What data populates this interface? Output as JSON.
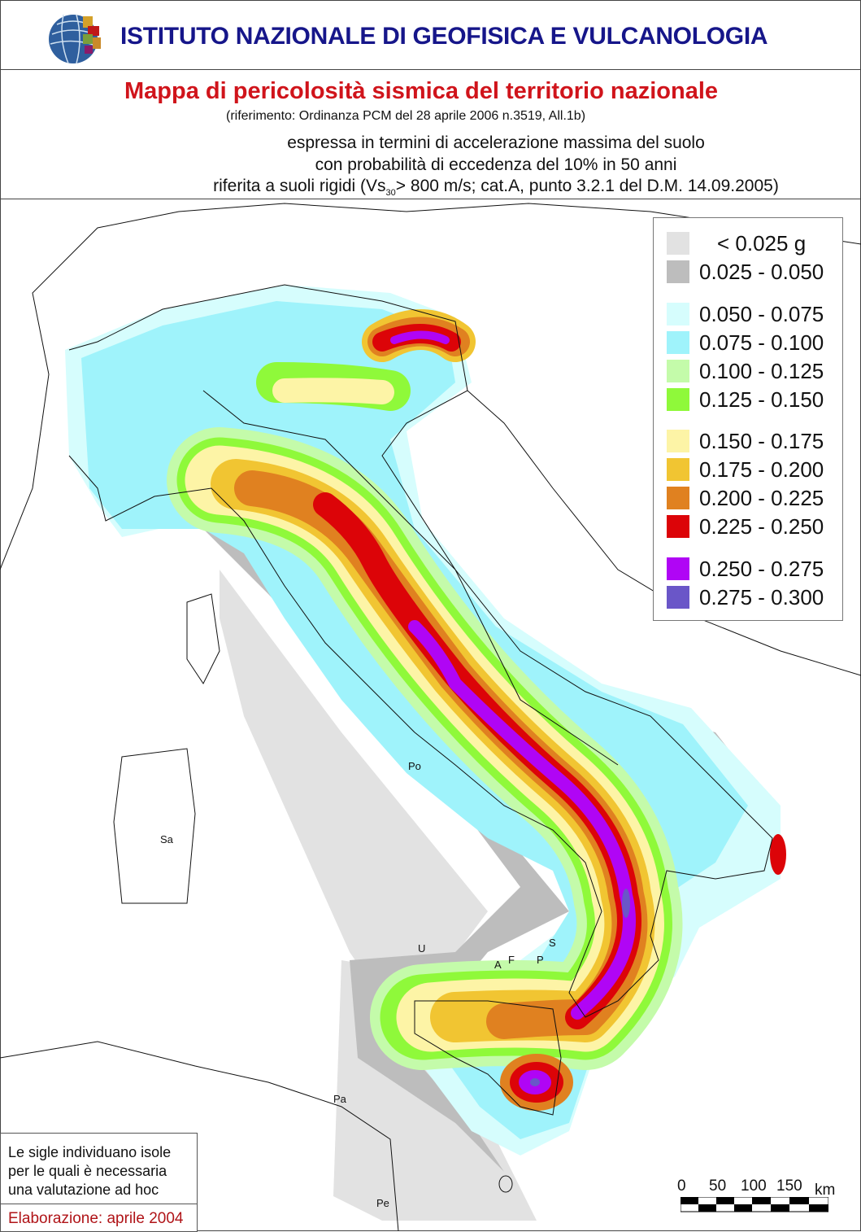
{
  "header": {
    "institute": "ISTITUTO NAZIONALE DI GEOFISICA E VULCANOLOGIA",
    "logo_icon": "ingv-globe-logo"
  },
  "titles": {
    "main": "Mappa di pericolosità sismica del territorio nazionale",
    "reference": "(riferimento: Ordinanza PCM del 28 aprile 2006 n.3519, All.1b)",
    "line1": "espressa in termini di accelerazione massima del suolo",
    "line2": "con probabilità di eccedenza del 10% in 50 anni",
    "line3_pre": "riferita a suoli rigidi (Vs",
    "line3_sub": "30",
    "line3_post": "> 800 m/s; cat.A, punto 3.2.1 del D.M. 14.09.2005)"
  },
  "legend": {
    "items": [
      {
        "label": "< 0.025 g",
        "color": "#e2e2e2"
      },
      {
        "label": "0.025 - 0.050",
        "color": "#bdbdbd"
      },
      {
        "label": "0.050 - 0.075",
        "color": "#d6fdfd"
      },
      {
        "label": "0.075 - 0.100",
        "color": "#9ff3fb"
      },
      {
        "label": "0.100 - 0.125",
        "color": "#c4fbaa"
      },
      {
        "label": "0.125 - 0.150",
        "color": "#8ff93a"
      },
      {
        "label": "0.150 - 0.175",
        "color": "#fdf4a6"
      },
      {
        "label": "0.175 - 0.200",
        "color": "#f1c532"
      },
      {
        "label": "0.200 - 0.225",
        "color": "#e08120"
      },
      {
        "label": "0.225 - 0.250",
        "color": "#dc0408"
      },
      {
        "label": "0.250 - 0.275",
        "color": "#b005f5"
      },
      {
        "label": "0.275 - 0.300",
        "color": "#6a56c8"
      }
    ]
  },
  "islands": [
    "Sa",
    "Po",
    "U",
    "S",
    "A",
    "F",
    "P",
    "Pa",
    "Pe"
  ],
  "note": {
    "text": "Le sigle individuano isole per le quali è necessaria una valutazione ad hoc",
    "date": "Elaborazione: aprile 2004"
  },
  "scale": {
    "labels": [
      "0",
      "50",
      "100",
      "150"
    ],
    "unit": "km"
  }
}
